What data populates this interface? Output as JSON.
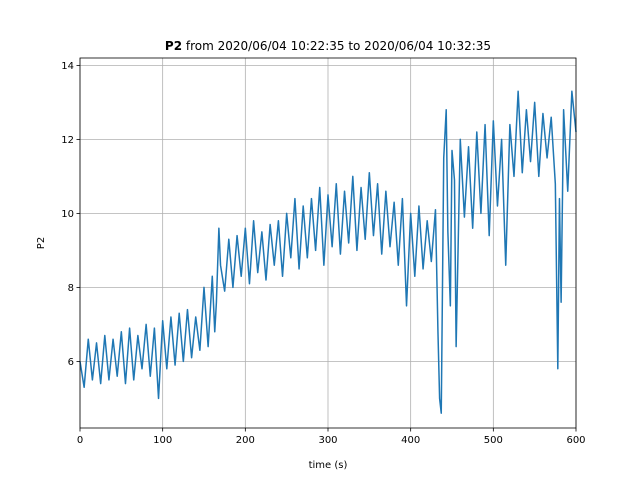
{
  "chart_data": {
    "type": "line",
    "title_bold": "P2",
    "title_rest": " from 2020/06/04 10:22:35 to 2020/06/04 10:32:35",
    "xlabel": "time (s)",
    "ylabel": "P2",
    "xlim": [
      0,
      600
    ],
    "ylim": [
      4.2,
      14.2
    ],
    "xticks": [
      0,
      100,
      200,
      300,
      400,
      500,
      600
    ],
    "yticks": [
      6,
      8,
      10,
      12,
      14
    ],
    "grid": true,
    "legend": "none",
    "series": [
      {
        "color": "#1f77b4",
        "x": [
          0,
          5,
          10,
          15,
          20,
          25,
          30,
          35,
          40,
          45,
          50,
          55,
          60,
          65,
          70,
          75,
          80,
          85,
          90,
          95,
          100,
          105,
          110,
          115,
          120,
          125,
          130,
          135,
          140,
          145,
          150,
          155,
          160,
          163,
          165,
          168,
          170,
          175,
          180,
          185,
          190,
          195,
          200,
          205,
          210,
          215,
          220,
          225,
          230,
          235,
          240,
          245,
          250,
          255,
          260,
          265,
          270,
          275,
          280,
          285,
          290,
          295,
          300,
          305,
          310,
          315,
          320,
          325,
          330,
          335,
          340,
          345,
          350,
          355,
          360,
          365,
          370,
          375,
          380,
          385,
          390,
          395,
          400,
          405,
          410,
          415,
          420,
          425,
          430,
          433,
          435,
          437,
          440,
          443,
          445,
          448,
          450,
          453,
          455,
          460,
          465,
          470,
          475,
          480,
          485,
          490,
          495,
          500,
          505,
          510,
          515,
          520,
          525,
          530,
          535,
          540,
          545,
          550,
          555,
          560,
          565,
          570,
          575,
          578,
          580,
          582,
          585,
          590,
          595,
          600
        ],
        "y": [
          6.0,
          5.3,
          6.6,
          5.5,
          6.5,
          5.4,
          6.7,
          5.5,
          6.6,
          5.6,
          6.8,
          5.4,
          6.9,
          5.5,
          6.7,
          5.8,
          7.0,
          5.6,
          6.9,
          5.0,
          7.1,
          5.8,
          7.2,
          5.9,
          7.3,
          6.0,
          7.4,
          6.1,
          7.2,
          6.3,
          8.0,
          6.4,
          8.3,
          6.8,
          7.6,
          9.6,
          8.6,
          7.9,
          9.3,
          8.0,
          9.4,
          8.3,
          9.6,
          8.1,
          9.8,
          8.4,
          9.5,
          8.2,
          9.7,
          8.6,
          9.8,
          8.3,
          10.0,
          8.8,
          10.4,
          8.5,
          10.2,
          8.8,
          10.4,
          9.0,
          10.7,
          8.6,
          10.5,
          9.1,
          10.8,
          8.9,
          10.6,
          9.2,
          11.0,
          9.0,
          10.7,
          9.3,
          11.1,
          9.4,
          10.8,
          8.9,
          10.6,
          9.1,
          10.3,
          8.6,
          10.4,
          7.5,
          10.0,
          8.3,
          10.2,
          8.5,
          9.8,
          8.7,
          10.1,
          6.8,
          5.0,
          4.6,
          11.5,
          12.8,
          9.5,
          7.5,
          11.7,
          10.9,
          6.4,
          12.0,
          9.9,
          11.8,
          9.6,
          12.2,
          10.0,
          12.4,
          9.4,
          12.5,
          10.2,
          12.0,
          8.6,
          12.4,
          11.0,
          13.3,
          11.1,
          12.8,
          11.4,
          13.0,
          11.0,
          12.7,
          11.5,
          12.6,
          10.8,
          5.8,
          10.4,
          7.6,
          12.8,
          10.6,
          13.3,
          12.2
        ]
      }
    ]
  }
}
